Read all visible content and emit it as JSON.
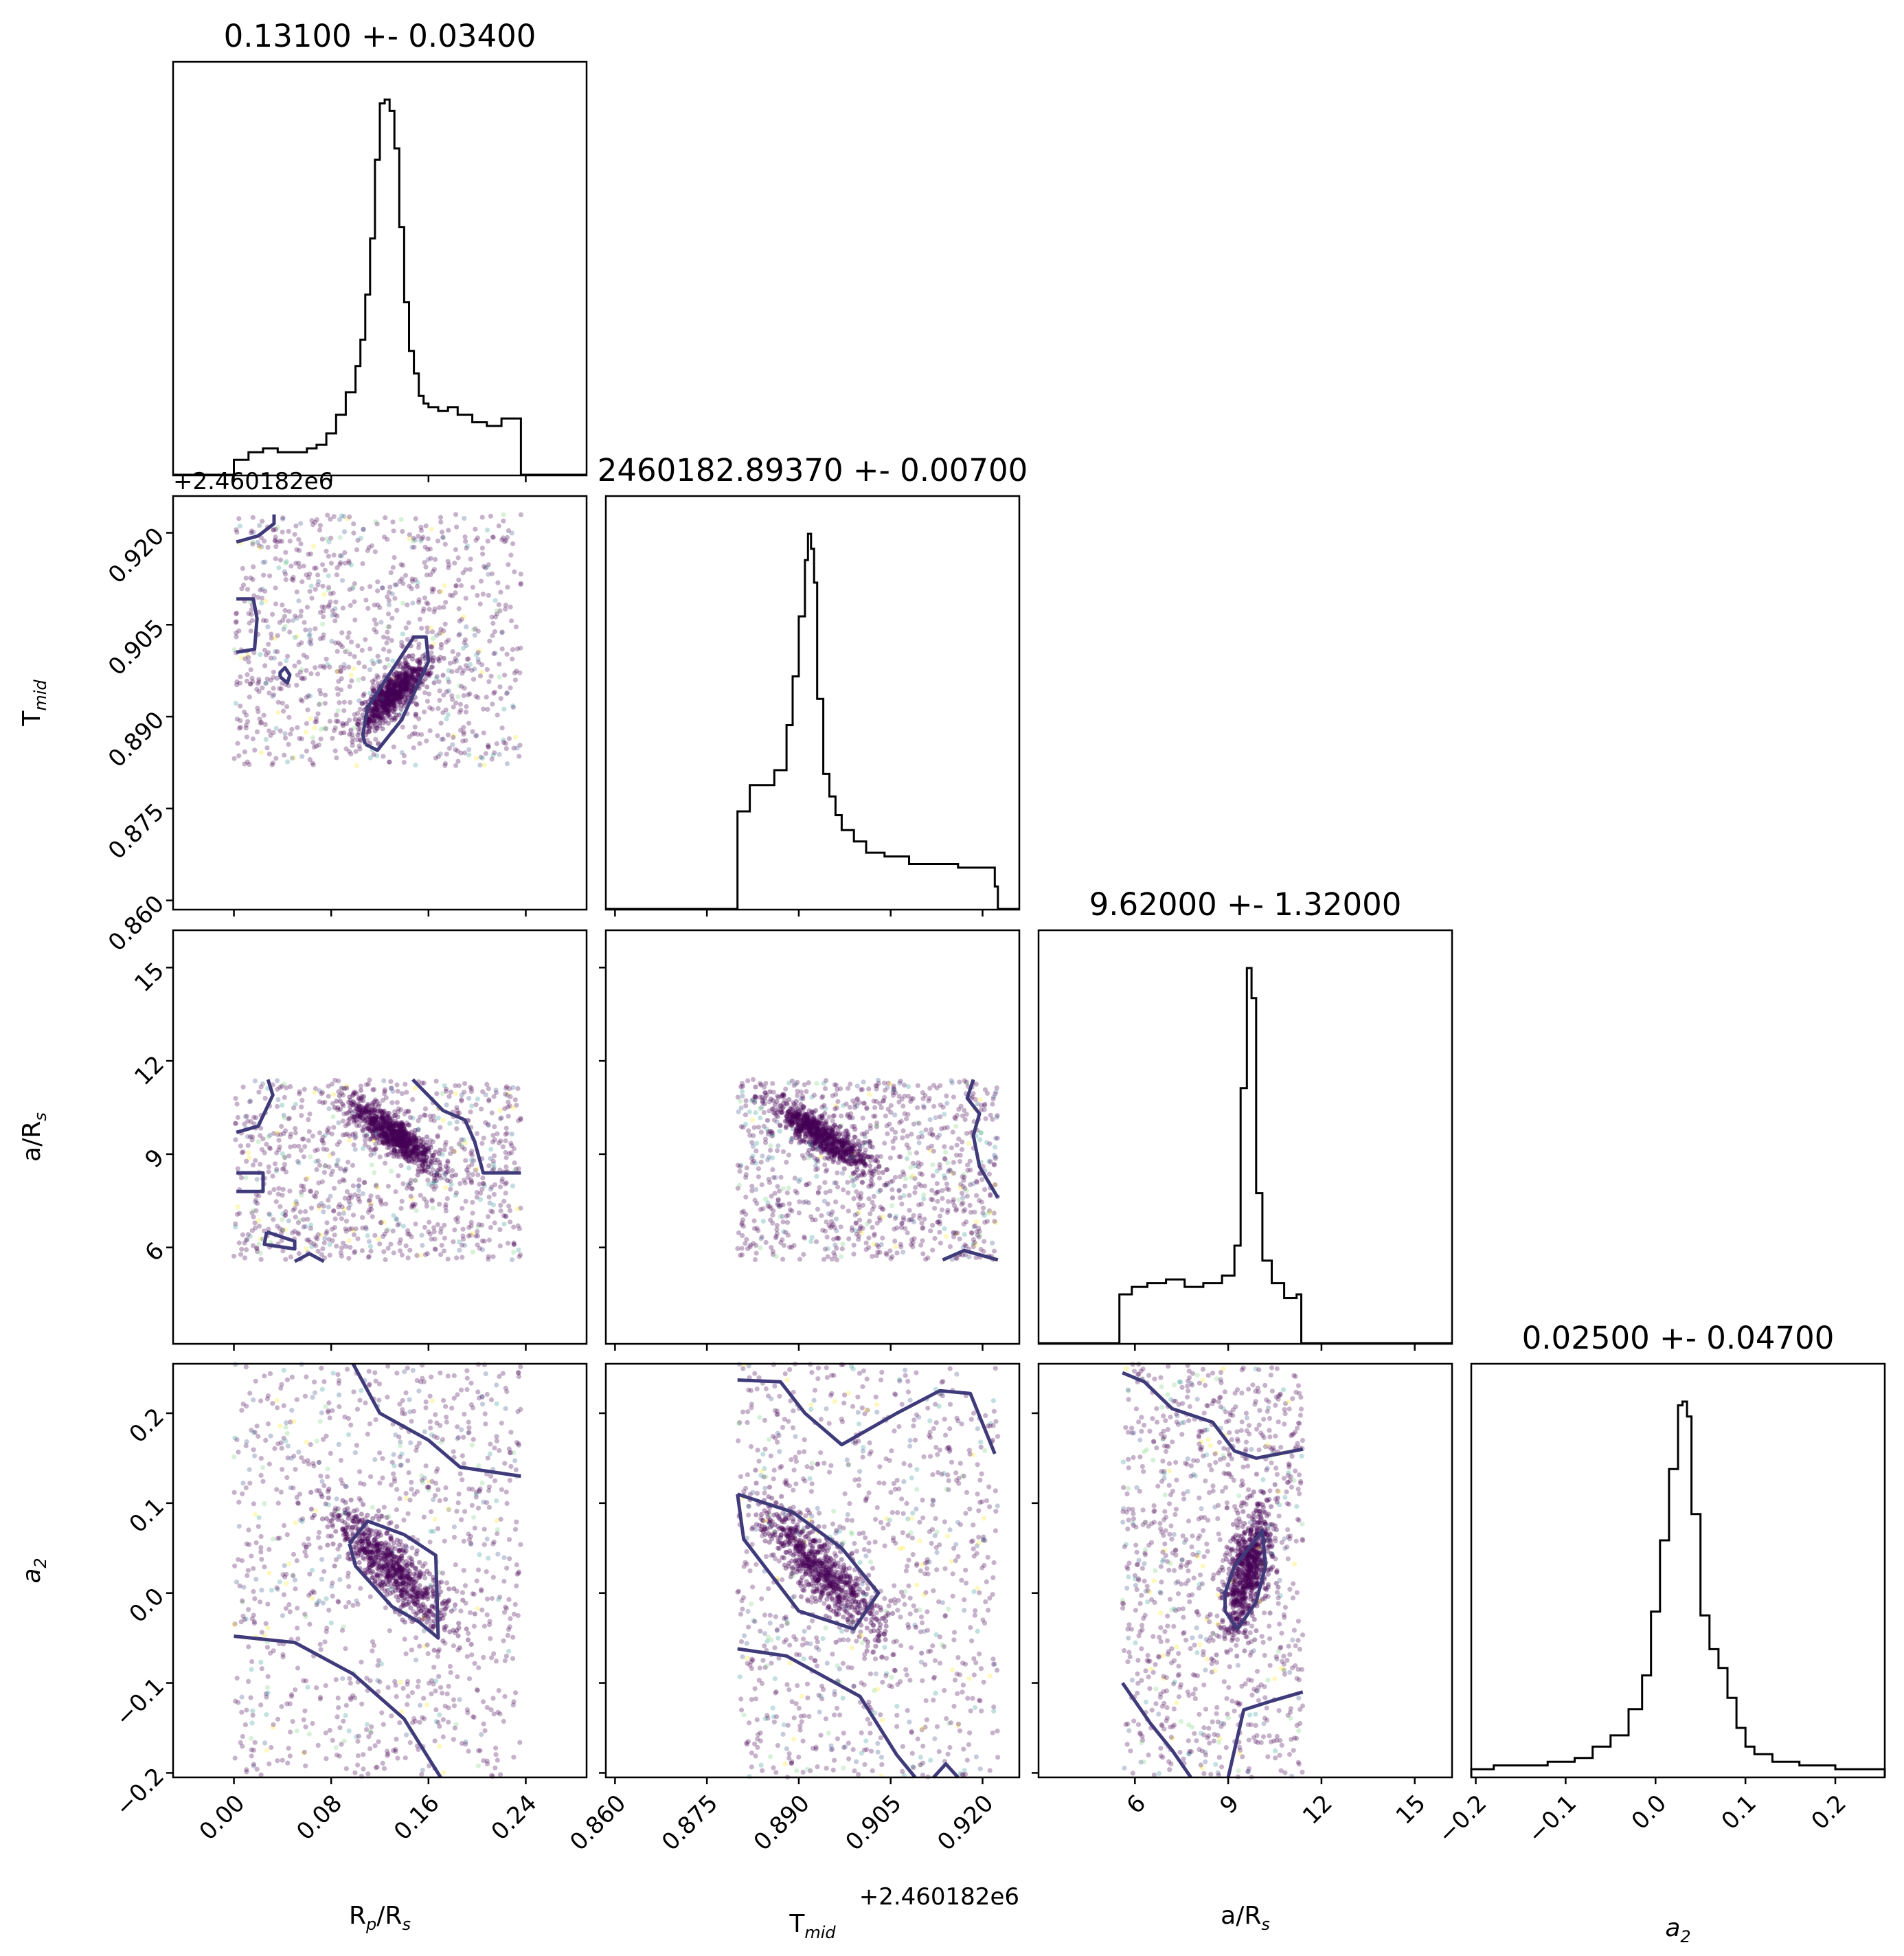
{
  "chart_data": {
    "type": "corner",
    "parameters": [
      {
        "key": "rp",
        "label": "R",
        "sub": "p",
        "label_mid": "/R",
        "sub2": "s",
        "range": [
          -0.05,
          0.29
        ],
        "ticks": [
          "0.00",
          "0.08",
          "0.16",
          "0.24"
        ],
        "tick_values": [
          0.0,
          0.08,
          0.16,
          0.24
        ]
      },
      {
        "key": "tmid",
        "label": "T",
        "sub": "mid",
        "range": [
          0.8585,
          0.926
        ],
        "ticks": [
          "0.860",
          "0.875",
          "0.890",
          "0.905",
          "0.920"
        ],
        "tick_values": [
          0.86,
          0.875,
          0.89,
          0.905,
          0.92
        ],
        "offset": "+2.460182e6"
      },
      {
        "key": "ars",
        "label": "a/R",
        "sub": "s",
        "range": [
          2.9,
          16.2
        ],
        "ticks": [
          "6",
          "9",
          "12",
          "15"
        ],
        "tick_values": [
          6,
          9,
          12,
          15
        ]
      },
      {
        "key": "a2",
        "label": "a",
        "sub": "2",
        "italic": true,
        "range": [
          -0.205,
          0.255
        ],
        "ticks": [
          "−0.2",
          "−0.1",
          "0.0",
          "0.1",
          "0.2"
        ],
        "tick_values": [
          -0.2,
          -0.1,
          0.0,
          0.1,
          0.2
        ]
      }
    ],
    "titles": [
      "0.13100 +- 0.03400",
      "2460182.89370 +- 0.00700",
      "9.62000 +- 1.32000",
      "0.02500 +- 0.04700"
    ],
    "y_offset_label": "+2.460182e6",
    "histograms": [
      {
        "x": [
          0.0,
          0.012,
          0.024,
          0.036,
          0.048,
          0.06,
          0.068,
          0.076,
          0.084,
          0.092,
          0.1,
          0.104,
          0.108,
          0.112,
          0.116,
          0.12,
          0.124,
          0.128,
          0.132,
          0.136,
          0.14,
          0.144,
          0.148,
          0.152,
          0.156,
          0.16,
          0.168,
          0.176,
          0.184,
          0.196,
          0.208,
          0.22,
          0.236
        ],
        "counts": [
          0.04,
          0.06,
          0.07,
          0.06,
          0.06,
          0.07,
          0.08,
          0.11,
          0.16,
          0.22,
          0.29,
          0.36,
          0.48,
          0.63,
          0.84,
          0.99,
          1.0,
          0.97,
          0.87,
          0.66,
          0.46,
          0.33,
          0.27,
          0.21,
          0.19,
          0.18,
          0.17,
          0.18,
          0.16,
          0.14,
          0.13,
          0.15,
          0.0
        ]
      },
      {
        "x": [
          0.8585,
          0.88,
          0.882,
          0.884,
          0.886,
          0.888,
          0.889,
          0.89,
          0.891,
          0.8915,
          0.892,
          0.8925,
          0.893,
          0.894,
          0.895,
          0.896,
          0.897,
          0.899,
          0.901,
          0.904,
          0.908,
          0.912,
          0.916,
          0.92,
          0.922,
          0.9225
        ],
        "counts": [
          0.0,
          0.26,
          0.33,
          0.33,
          0.37,
          0.49,
          0.62,
          0.78,
          0.93,
          1.0,
          0.96,
          0.87,
          0.56,
          0.36,
          0.3,
          0.25,
          0.21,
          0.18,
          0.15,
          0.14,
          0.12,
          0.12,
          0.11,
          0.11,
          0.06,
          0.0
        ]
      },
      {
        "x": [
          2.9,
          5.5,
          5.9,
          6.4,
          7.0,
          7.6,
          8.2,
          8.8,
          9.2,
          9.4,
          9.6,
          9.75,
          9.9,
          10.1,
          10.4,
          10.8,
          11.2,
          11.35,
          16.2
        ],
        "counts": [
          0.0,
          0.13,
          0.15,
          0.16,
          0.17,
          0.15,
          0.16,
          0.18,
          0.26,
          0.68,
          1.0,
          0.92,
          0.4,
          0.22,
          0.16,
          0.12,
          0.13,
          0.0,
          0.0
        ]
      },
      {
        "x": [
          -0.205,
          -0.18,
          -0.15,
          -0.12,
          -0.09,
          -0.07,
          -0.05,
          -0.03,
          -0.015,
          -0.005,
          0.005,
          0.015,
          0.025,
          0.03,
          0.035,
          0.04,
          0.05,
          0.06,
          0.07,
          0.08,
          0.09,
          0.1,
          0.11,
          0.13,
          0.16,
          0.2,
          0.255
        ],
        "counts": [
          0.02,
          0.03,
          0.03,
          0.04,
          0.05,
          0.08,
          0.11,
          0.18,
          0.27,
          0.44,
          0.63,
          0.82,
          0.99,
          1.0,
          0.96,
          0.7,
          0.43,
          0.34,
          0.29,
          0.21,
          0.13,
          0.08,
          0.06,
          0.04,
          0.03,
          0.02,
          0.0
        ]
      }
    ],
    "pairs": [
      {
        "xi": 0,
        "yi": 1,
        "xr": [
          0.0,
          0.236
        ],
        "yr": [
          0.882,
          0.923
        ],
        "mean": [
          0.131,
          0.8937
        ],
        "sd": [
          0.014,
          0.0028
        ],
        "corr": 0.8,
        "contours": [
          [
            [
              0.002,
              0.9185
            ],
            [
              0.02,
              0.9195
            ],
            [
              0.033,
              0.9215
            ],
            [
              0.033,
              0.923
            ]
          ],
          [
            [
              0.002,
              0.9092
            ],
            [
              0.016,
              0.9092
            ],
            [
              0.019,
              0.906
            ],
            [
              0.017,
              0.901
            ],
            [
              0.002,
              0.9005
            ]
          ],
          [
            [
              0.038,
              0.8965
            ],
            [
              0.044,
              0.8955
            ],
            [
              0.046,
              0.8968
            ],
            [
              0.042,
              0.898
            ],
            [
              0.038,
              0.8972
            ],
            [
              0.038,
              0.8965
            ]
          ],
          [
            [
              0.108,
              0.8855
            ],
            [
              0.118,
              0.8845
            ],
            [
              0.138,
              0.8895
            ],
            [
              0.16,
              0.899
            ],
            [
              0.158,
              0.903
            ],
            [
              0.148,
              0.903
            ],
            [
              0.128,
              0.897
            ],
            [
              0.11,
              0.8915
            ],
            [
              0.106,
              0.887
            ],
            [
              0.108,
              0.8855
            ]
          ]
        ]
      },
      {
        "xi": 0,
        "yi": 2,
        "xr": [
          0.0,
          0.236
        ],
        "yr": [
          5.6,
          11.4
        ],
        "mean": [
          0.131,
          9.62
        ],
        "sd": [
          0.018,
          0.55
        ],
        "corr": -0.85,
        "contours": [
          [
            [
              0.002,
              9.7
            ],
            [
              0.02,
              9.9
            ],
            [
              0.032,
              10.9
            ],
            [
              0.028,
              11.4
            ]
          ],
          [
            [
              0.002,
              8.4
            ],
            [
              0.024,
              8.4
            ],
            [
              0.024,
              7.8
            ],
            [
              0.002,
              7.8
            ]
          ],
          [
            [
              0.027,
              6.5
            ],
            [
              0.05,
              6.2
            ],
            [
              0.05,
              5.95
            ],
            [
              0.025,
              6.1
            ],
            [
              0.027,
              6.5
            ]
          ],
          [
            [
              0.05,
              5.55
            ],
            [
              0.062,
              5.8
            ],
            [
              0.074,
              5.55
            ]
          ],
          [
            [
              0.147,
              11.4
            ],
            [
              0.172,
              10.4
            ],
            [
              0.19,
              10.1
            ],
            [
              0.198,
              9.4
            ],
            [
              0.205,
              8.4
            ],
            [
              0.236,
              8.4
            ]
          ]
        ]
      },
      {
        "xi": 0,
        "yi": 3,
        "xr": [
          0.0,
          0.236
        ],
        "yr": [
          -0.205,
          0.255
        ],
        "mean": [
          0.131,
          0.025
        ],
        "sd": [
          0.025,
          0.035
        ],
        "corr": -0.85,
        "contours": [
          [
            [
              0.098,
              0.255
            ],
            [
              0.12,
              0.2
            ],
            [
              0.16,
              0.17
            ],
            [
              0.186,
              0.14
            ],
            [
              0.236,
              0.13
            ]
          ],
          [
            [
              0.0,
              -0.048
            ],
            [
              0.05,
              -0.055
            ],
            [
              0.098,
              -0.09
            ],
            [
              0.14,
              -0.14
            ],
            [
              0.17,
              -0.205
            ]
          ],
          [
            [
              0.095,
              0.055
            ],
            [
              0.11,
              0.08
            ],
            [
              0.14,
              0.065
            ],
            [
              0.166,
              0.042
            ],
            [
              0.168,
              -0.05
            ],
            [
              0.152,
              -0.032
            ],
            [
              0.13,
              -0.015
            ],
            [
              0.1,
              0.03
            ],
            [
              0.095,
              0.055
            ]
          ]
        ]
      },
      {
        "xi": 1,
        "yi": 2,
        "xr": [
          0.88,
          0.9225
        ],
        "yr": [
          5.6,
          11.4
        ],
        "mean": [
          0.8937,
          9.62
        ],
        "sd": [
          0.004,
          0.55
        ],
        "corr": -0.85,
        "contours": [
          [
            [
              0.9185,
              11.4
            ],
            [
              0.9175,
              10.8
            ],
            [
              0.9195,
              10.3
            ],
            [
              0.9185,
              9.6
            ],
            [
              0.9195,
              8.6
            ],
            [
              0.9225,
              7.6
            ]
          ],
          [
            [
              0.9135,
              5.6
            ],
            [
              0.917,
              5.9
            ],
            [
              0.9225,
              5.6
            ]
          ]
        ]
      },
      {
        "xi": 1,
        "yi": 3,
        "xr": [
          0.88,
          0.9225
        ],
        "yr": [
          -0.205,
          0.255
        ],
        "mean": [
          0.8937,
          0.025
        ],
        "sd": [
          0.005,
          0.035
        ],
        "corr": -0.85,
        "contours": [
          [
            [
              0.88,
              0.237
            ],
            [
              0.887,
              0.235
            ],
            [
              0.891,
              0.2
            ],
            [
              0.897,
              0.165
            ],
            [
              0.906,
              0.2
            ],
            [
              0.913,
              0.225
            ],
            [
              0.918,
              0.222
            ],
            [
              0.922,
              0.155
            ]
          ],
          [
            [
              0.88,
              -0.062
            ],
            [
              0.888,
              -0.07
            ],
            [
              0.9,
              -0.115
            ],
            [
              0.906,
              -0.18
            ],
            [
              0.909,
              -0.205
            ]
          ],
          [
            [
              0.912,
              -0.205
            ],
            [
              0.914,
              -0.19
            ],
            [
              0.916,
              -0.205
            ]
          ],
          [
            [
              0.88,
              0.11
            ],
            [
              0.889,
              0.09
            ],
            [
              0.897,
              0.05
            ],
            [
              0.903,
              0.0
            ],
            [
              0.899,
              -0.04
            ],
            [
              0.89,
              -0.02
            ],
            [
              0.881,
              0.06
            ],
            [
              0.88,
              0.11
            ]
          ]
        ]
      },
      {
        "xi": 2,
        "yi": 3,
        "xr": [
          5.6,
          11.4
        ],
        "yr": [
          -0.205,
          0.255
        ],
        "mean": [
          9.62,
          0.025
        ],
        "sd": [
          0.4,
          0.035
        ],
        "corr": 0.55,
        "contours": [
          [
            [
              5.6,
              0.245
            ],
            [
              6.3,
              0.235
            ],
            [
              7.2,
              0.205
            ],
            [
              8.5,
              0.19
            ],
            [
              9.2,
              0.158
            ],
            [
              9.9,
              0.15
            ],
            [
              11.4,
              0.16
            ]
          ],
          [
            [
              5.6,
              -0.1
            ],
            [
              6.5,
              -0.145
            ],
            [
              7.2,
              -0.175
            ],
            [
              7.8,
              -0.205
            ]
          ],
          [
            [
              9.0,
              -0.205
            ],
            [
              9.5,
              -0.13
            ],
            [
              10.4,
              -0.12
            ],
            [
              11.4,
              -0.11
            ]
          ],
          [
            [
              8.9,
              0.0
            ],
            [
              9.2,
              0.03
            ],
            [
              9.9,
              0.06
            ],
            [
              10.1,
              0.07
            ],
            [
              10.2,
              0.03
            ],
            [
              9.9,
              -0.01
            ],
            [
              9.3,
              -0.04
            ],
            [
              8.9,
              -0.02
            ],
            [
              8.9,
              0.0
            ]
          ]
        ]
      }
    ]
  }
}
